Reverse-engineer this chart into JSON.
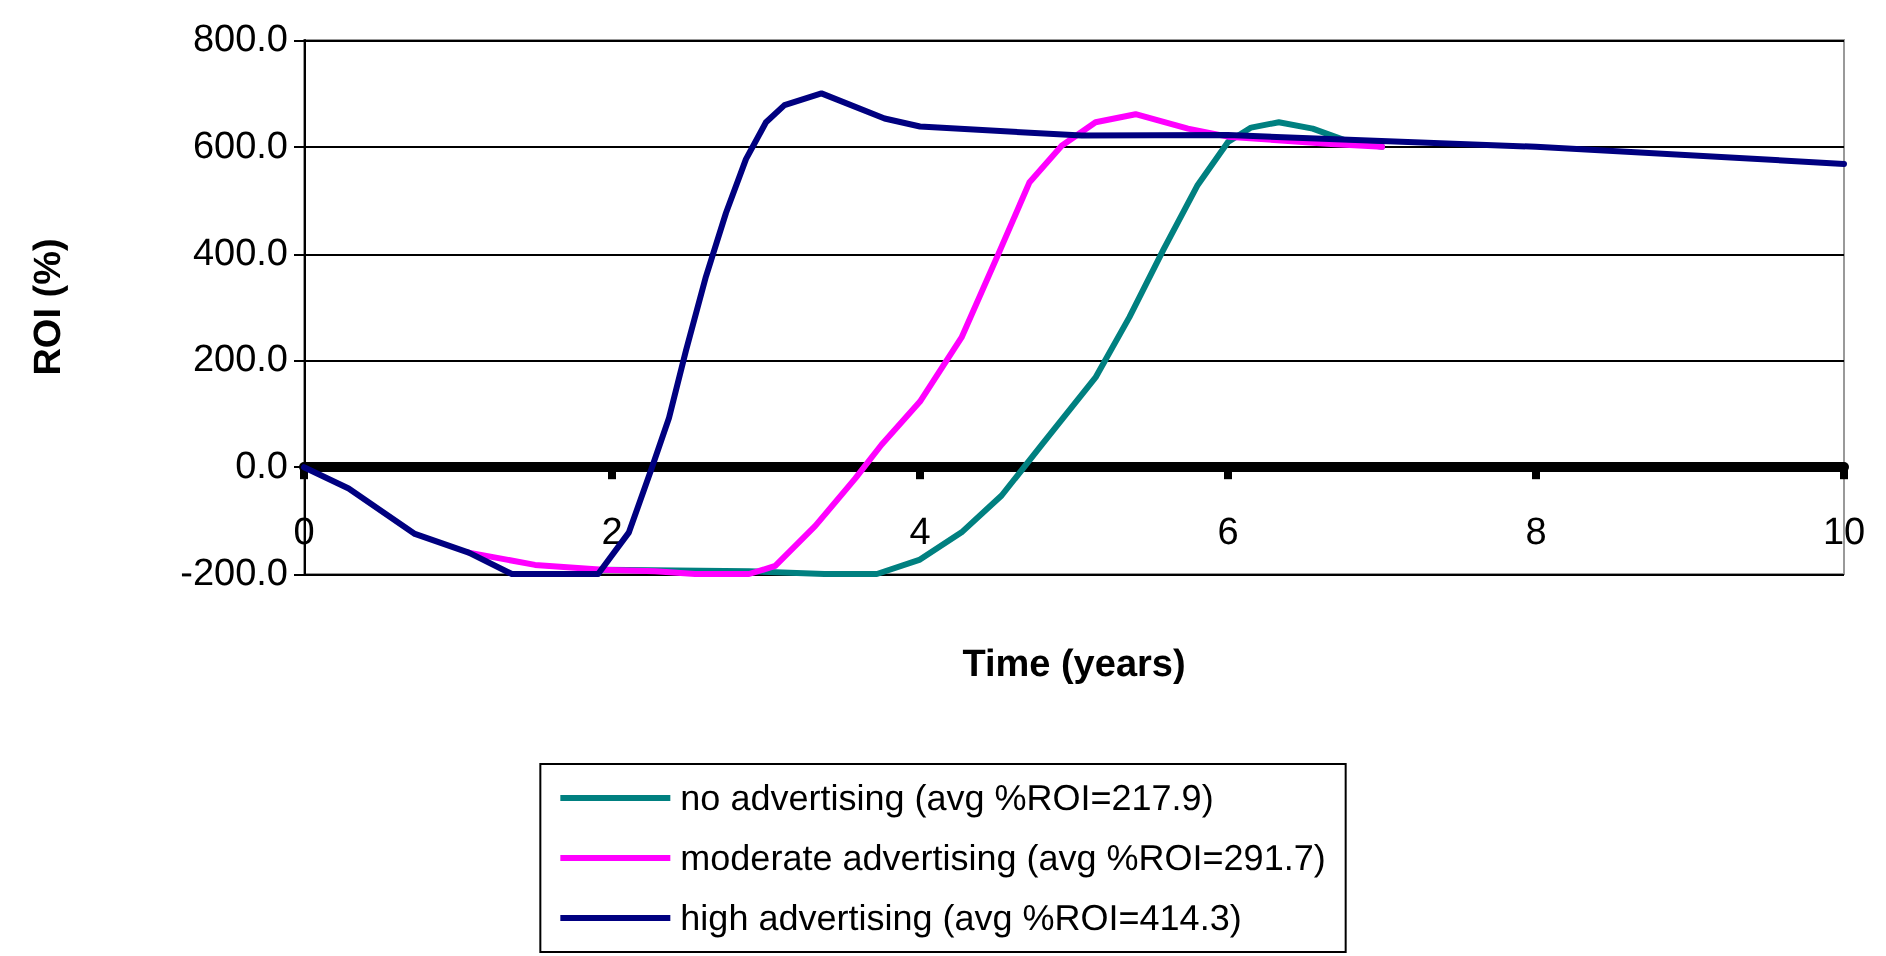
{
  "chart_data": {
    "type": "line",
    "xlabel": "Time (years)",
    "ylabel": "ROI (%)",
    "xlim": [
      0,
      10
    ],
    "xticks": [
      0,
      2,
      4,
      6,
      8,
      10
    ],
    "ylim": [
      -200,
      800
    ],
    "yticks": [
      {
        "value": -200,
        "label": "-200.0"
      },
      {
        "value": 0,
        "label": "0.0"
      },
      {
        "value": 200,
        "label": "200.0"
      },
      {
        "value": 400,
        "label": "400.0"
      },
      {
        "value": 600,
        "label": "600.0"
      },
      {
        "value": 800,
        "label": "800.0"
      }
    ],
    "grid": "y",
    "legend": "bottom",
    "marker": "none",
    "line_style": "solid",
    "series": [
      {
        "name": "no advertising (avg %ROI=217.9)",
        "color": "#008080",
        "x": [
          1.94,
          2.89,
          3.38,
          3.72,
          4.0,
          4.27,
          4.53,
          4.79,
          5.14,
          5.36,
          5.58,
          5.8,
          6.0,
          6.15,
          6.33,
          6.55,
          6.77,
          7.0
        ],
        "values": [
          -192,
          -195,
          -200,
          -200,
          -173,
          -122,
          -53,
          42,
          168,
          281,
          407,
          527,
          609,
          636,
          646,
          634,
          611,
          600
        ]
      },
      {
        "name": "moderate advertising (avg %ROI=291.7)",
        "color": "#ff00ff",
        "x": [
          1.07,
          1.5,
          1.94,
          2.28,
          2.54,
          2.89,
          3.06,
          3.32,
          3.58,
          3.75,
          4.0,
          4.27,
          4.51,
          4.71,
          4.92,
          5.14,
          5.4,
          5.74,
          6.0,
          6.67,
          7.0
        ],
        "values": [
          -160,
          -183,
          -192,
          -195,
          -200,
          -200,
          -185,
          -110,
          -21,
          42,
          123,
          243,
          400,
          533,
          602,
          646,
          661,
          634,
          619,
          605,
          600
        ]
      },
      {
        "name": "high advertising (avg %ROI=414.3)",
        "color": "#000080",
        "x": [
          0,
          0.29,
          0.72,
          1.07,
          1.35,
          1.91,
          2.11,
          2.26,
          2.37,
          2.48,
          2.61,
          2.74,
          2.87,
          3.0,
          3.12,
          3.36,
          3.77,
          4.0,
          5.05,
          6.0,
          8.0,
          10.0
        ],
        "values": [
          0,
          -40,
          -125,
          -160,
          -200,
          -200,
          -122,
          0,
          92,
          218,
          357,
          476,
          577,
          646,
          678,
          700,
          653,
          638,
          621,
          622,
          600,
          568
        ]
      }
    ]
  }
}
